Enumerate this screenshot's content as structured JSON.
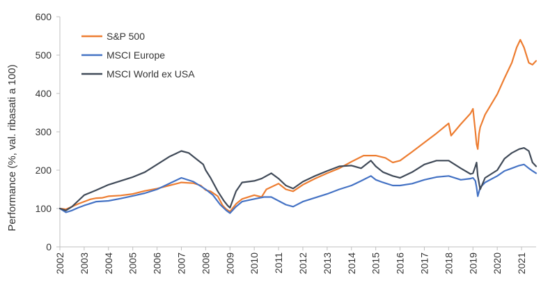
{
  "chart_data": {
    "type": "line",
    "title": "",
    "xlabel": "",
    "ylabel": "Performance (%, val. ribasati a 100)",
    "ylim": [
      0,
      600
    ],
    "yticks": [
      "0",
      "100",
      "200",
      "300",
      "400",
      "500",
      "600"
    ],
    "xlim": [
      2002,
      2021.6
    ],
    "xticks": [
      "2002",
      "2003",
      "2004",
      "2005",
      "2006",
      "2007",
      "2008",
      "2009",
      "2010",
      "2011",
      "2012",
      "2013",
      "2014",
      "2015",
      "2016",
      "2017",
      "2018",
      "2019",
      "2020",
      "2021"
    ],
    "grid": false,
    "legend_position": "top-left",
    "series": [
      {
        "name": "S&P 500",
        "color": "#ED7D31",
        "x": [
          2002.0,
          2002.25,
          2002.5,
          2002.75,
          2003.0,
          2003.25,
          2003.5,
          2003.75,
          2004.0,
          2004.5,
          2005.0,
          2005.5,
          2006.0,
          2006.5,
          2007.0,
          2007.5,
          2007.8,
          2008.0,
          2008.2,
          2008.5,
          2008.7,
          2008.85,
          2009.0,
          2009.25,
          2009.5,
          2010.0,
          2010.3,
          2010.5,
          2011.0,
          2011.3,
          2011.6,
          2012.0,
          2012.5,
          2013.0,
          2013.5,
          2014.0,
          2014.5,
          2015.0,
          2015.4,
          2015.7,
          2016.0,
          2016.5,
          2017.0,
          2017.5,
          2018.0,
          2018.1,
          2018.5,
          2018.9,
          2019.0,
          2019.1,
          2019.15,
          2019.2,
          2019.25,
          2019.3,
          2019.5,
          2020.0,
          2020.3,
          2020.6,
          2020.8,
          2020.95,
          2021.1,
          2021.3,
          2021.45,
          2021.6
        ],
        "values": [
          100,
          98,
          105,
          112,
          118,
          124,
          127,
          128,
          132,
          134,
          138,
          146,
          152,
          160,
          168,
          166,
          160,
          148,
          145,
          132,
          108,
          98,
          92,
          112,
          125,
          135,
          130,
          150,
          165,
          150,
          145,
          162,
          178,
          192,
          205,
          222,
          238,
          238,
          232,
          220,
          225,
          248,
          272,
          296,
          322,
          290,
          320,
          348,
          360,
          300,
          268,
          255,
          295,
          312,
          345,
          398,
          440,
          480,
          520,
          540,
          520,
          480,
          475,
          485
        ]
      },
      {
        "name": "MSCI Europe",
        "color": "#4472C4",
        "x": [
          2002.0,
          2002.25,
          2002.5,
          2002.75,
          2003.0,
          2003.5,
          2004.0,
          2004.5,
          2005.0,
          2005.5,
          2006.0,
          2006.5,
          2007.0,
          2007.5,
          2008.0,
          2008.3,
          2008.6,
          2008.85,
          2009.0,
          2009.25,
          2009.5,
          2010.0,
          2010.4,
          2010.7,
          2011.0,
          2011.3,
          2011.6,
          2012.0,
          2012.5,
          2013.0,
          2013.5,
          2014.0,
          2014.4,
          2014.8,
          2015.0,
          2015.3,
          2015.7,
          2016.0,
          2016.5,
          2017.0,
          2017.5,
          2018.0,
          2018.5,
          2018.9,
          2019.0,
          2019.1,
          2019.15,
          2019.2,
          2019.3,
          2019.5,
          2020.0,
          2020.3,
          2020.6,
          2020.9,
          2021.1,
          2021.3,
          2021.45,
          2021.6
        ],
        "values": [
          100,
          90,
          95,
          102,
          108,
          118,
          120,
          126,
          133,
          140,
          150,
          165,
          180,
          170,
          150,
          135,
          110,
          95,
          88,
          105,
          118,
          125,
          130,
          130,
          120,
          110,
          105,
          118,
          128,
          138,
          150,
          160,
          172,
          185,
          175,
          168,
          160,
          160,
          165,
          175,
          182,
          185,
          175,
          178,
          180,
          172,
          155,
          132,
          155,
          168,
          185,
          198,
          205,
          212,
          215,
          205,
          198,
          192
        ]
      },
      {
        "name": "MSCI World ex USA",
        "color": "#404A58",
        "x": [
          2002.0,
          2002.25,
          2002.5,
          2002.75,
          2003.0,
          2003.5,
          2004.0,
          2004.5,
          2005.0,
          2005.5,
          2006.0,
          2006.5,
          2007.0,
          2007.3,
          2007.6,
          2007.9,
          2008.0,
          2008.2,
          2008.5,
          2008.75,
          2008.9,
          2009.0,
          2009.25,
          2009.5,
          2010.0,
          2010.3,
          2010.7,
          2011.0,
          2011.3,
          2011.6,
          2012.0,
          2012.5,
          2013.0,
          2013.5,
          2014.0,
          2014.4,
          2014.8,
          2015.0,
          2015.3,
          2015.7,
          2016.0,
          2016.5,
          2017.0,
          2017.5,
          2018.0,
          2018.5,
          2018.9,
          2019.0,
          2019.1,
          2019.15,
          2019.2,
          2019.3,
          2019.5,
          2020.0,
          2020.3,
          2020.6,
          2020.9,
          2021.1,
          2021.3,
          2021.45,
          2021.6
        ],
        "values": [
          100,
          95,
          105,
          120,
          135,
          148,
          162,
          172,
          182,
          195,
          215,
          235,
          250,
          245,
          230,
          215,
          200,
          180,
          145,
          120,
          108,
          102,
          145,
          168,
          172,
          178,
          192,
          178,
          160,
          152,
          170,
          185,
          198,
          210,
          212,
          205,
          225,
          210,
          195,
          185,
          180,
          195,
          215,
          225,
          225,
          205,
          190,
          192,
          210,
          220,
          185,
          150,
          180,
          200,
          230,
          245,
          255,
          258,
          250,
          220,
          210
        ]
      }
    ]
  }
}
